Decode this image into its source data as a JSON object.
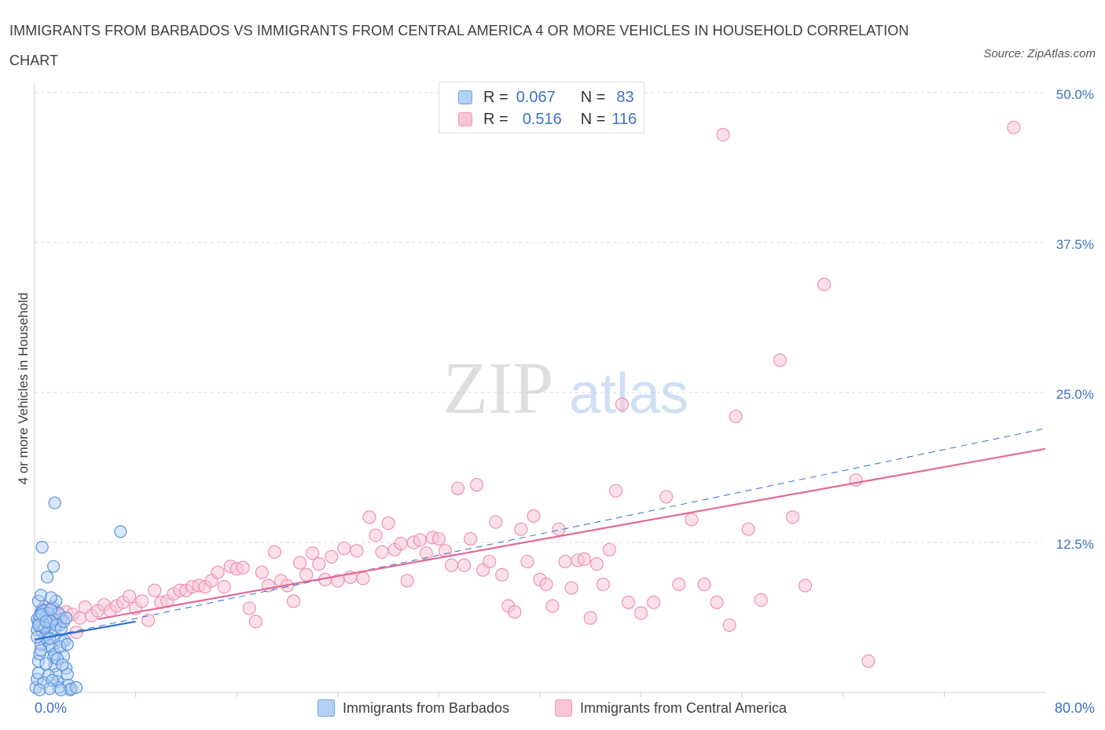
{
  "title": "IMMIGRANTS FROM BARBADOS VS IMMIGRANTS FROM CENTRAL AMERICA 4 OR MORE VEHICLES IN HOUSEHOLD CORRELATION CHART",
  "source": "Source: ZipAtlas.com",
  "watermark": {
    "zip": "ZIP",
    "atlas": "atlas"
  },
  "stats": {
    "barbados": {
      "r_label": "R =",
      "r_value": "0.067",
      "n_label": "N =",
      "n_value": "83"
    },
    "central_america": {
      "r_label": "R =",
      "r_value": "0.516",
      "n_label": "N =",
      "n_value": "116"
    }
  },
  "legend": {
    "barbados": "Immigrants from Barbados",
    "central_america": "Immigrants from Central America"
  },
  "colors": {
    "barbados": "#5b93dd",
    "central_america": "#ee93b1",
    "barbados_line": "#2f6fcc",
    "central_america_line": "#e2699a",
    "tick_label": "#3b73c4",
    "grid": "#d9d9d9"
  },
  "chart_data": {
    "type": "scatter",
    "title": "IMMIGRANTS FROM BARBADOS VS IMMIGRANTS FROM CENTRAL AMERICA 4 OR MORE VEHICLES IN HOUSEHOLD CORRELATION CHART",
    "xlabel": "",
    "ylabel": "4 or more Vehicles in Household",
    "xlim": [
      0,
      80
    ],
    "ylim": [
      0,
      50
    ],
    "x_tick_labels": [
      "0.0%",
      "80.0%"
    ],
    "y_ticks": [
      12.5,
      25.0,
      37.5,
      50.0
    ],
    "y_tick_labels": [
      "12.5%",
      "25.0%",
      "37.5%",
      "50.0%"
    ],
    "grid": true,
    "legend_position": "bottom",
    "series": [
      {
        "name": "Immigrants from Barbados",
        "points": [
          [
            0.1,
            0.4
          ],
          [
            0.2,
            1.1
          ],
          [
            0.3,
            1.6
          ],
          [
            0.3,
            2.6
          ],
          [
            0.4,
            3.2
          ],
          [
            0.5,
            4.0
          ],
          [
            0.2,
            5.2
          ],
          [
            0.3,
            5.9
          ],
          [
            0.4,
            6.3
          ],
          [
            0.5,
            6.6
          ],
          [
            0.6,
            6.9
          ],
          [
            0.7,
            6.0
          ],
          [
            0.8,
            5.4
          ],
          [
            0.9,
            4.8
          ],
          [
            1.0,
            4.4
          ],
          [
            1.1,
            5.8
          ],
          [
            1.2,
            6.2
          ],
          [
            1.3,
            5.0
          ],
          [
            1.4,
            3.6
          ],
          [
            1.5,
            2.9
          ],
          [
            1.6,
            2.2
          ],
          [
            1.7,
            1.5
          ],
          [
            1.8,
            0.9
          ],
          [
            1.9,
            0.4
          ],
          [
            2.0,
            5.6
          ],
          [
            2.1,
            6.1
          ],
          [
            2.2,
            4.2
          ],
          [
            2.3,
            3.0
          ],
          [
            2.5,
            2.0
          ],
          [
            2.6,
            1.5
          ],
          [
            2.7,
            0.6
          ],
          [
            2.8,
            0.2
          ],
          [
            0.2,
            6.1
          ],
          [
            0.4,
            5.6
          ],
          [
            0.6,
            5.1
          ],
          [
            0.8,
            4.6
          ],
          [
            1.0,
            6.6
          ],
          [
            1.2,
            3.9
          ],
          [
            1.4,
            7.1
          ],
          [
            1.6,
            5.3
          ],
          [
            0.3,
            7.6
          ],
          [
            0.5,
            8.1
          ],
          [
            0.7,
            6.8
          ],
          [
            0.9,
            6.3
          ],
          [
            1.1,
            6.6
          ],
          [
            1.3,
            5.9
          ],
          [
            1.5,
            6.1
          ],
          [
            1.7,
            5.6
          ],
          [
            1.9,
            6.6
          ],
          [
            2.1,
            5.3
          ],
          [
            2.3,
            5.9
          ],
          [
            1.0,
            9.6
          ],
          [
            1.5,
            10.5
          ],
          [
            0.6,
            12.1
          ],
          [
            1.6,
            15.8
          ],
          [
            6.8,
            13.4
          ],
          [
            1.7,
            7.6
          ],
          [
            1.3,
            7.9
          ],
          [
            0.4,
            6.4
          ],
          [
            0.8,
            5.4
          ],
          [
            1.2,
            4.5
          ],
          [
            0.5,
            3.5
          ],
          [
            0.9,
            2.4
          ],
          [
            1.1,
            1.4
          ],
          [
            0.7,
            0.8
          ],
          [
            1.6,
            3.2
          ],
          [
            2.4,
            4.3
          ],
          [
            2.0,
            3.8
          ],
          [
            1.8,
            2.8
          ],
          [
            2.2,
            2.3
          ],
          [
            0.3,
            5.6
          ],
          [
            0.6,
            6.5
          ],
          [
            0.9,
            5.9
          ],
          [
            1.3,
            6.9
          ],
          [
            2.5,
            6.2
          ],
          [
            2.6,
            4.0
          ],
          [
            1.4,
            1.0
          ],
          [
            0.4,
            0.2
          ],
          [
            1.2,
            0.3
          ],
          [
            2.1,
            0.2
          ],
          [
            2.9,
            0.3
          ],
          [
            3.3,
            0.4
          ],
          [
            0.2,
            4.6
          ]
        ]
      },
      {
        "name": "Immigrants from Central America",
        "points": [
          [
            0.5,
            6.6
          ],
          [
            0.8,
            7.1
          ],
          [
            1.0,
            6.0
          ],
          [
            1.2,
            6.8
          ],
          [
            1.5,
            7.0
          ],
          [
            1.8,
            6.5
          ],
          [
            2.0,
            6.4
          ],
          [
            2.5,
            6.7
          ],
          [
            3.0,
            6.5
          ],
          [
            3.3,
            5.0
          ],
          [
            3.6,
            6.2
          ],
          [
            4.0,
            7.1
          ],
          [
            4.5,
            6.4
          ],
          [
            5.0,
            6.8
          ],
          [
            5.5,
            7.3
          ],
          [
            6.0,
            6.8
          ],
          [
            6.5,
            7.2
          ],
          [
            7.0,
            7.5
          ],
          [
            7.5,
            8.0
          ],
          [
            8.0,
            7.0
          ],
          [
            8.5,
            7.6
          ],
          [
            9.0,
            6.0
          ],
          [
            9.5,
            8.5
          ],
          [
            10.0,
            7.5
          ],
          [
            10.5,
            7.6
          ],
          [
            11.0,
            8.2
          ],
          [
            11.5,
            8.5
          ],
          [
            12.0,
            8.5
          ],
          [
            12.5,
            8.8
          ],
          [
            13.0,
            8.9
          ],
          [
            13.5,
            8.8
          ],
          [
            14.0,
            9.3
          ],
          [
            14.5,
            10.0
          ],
          [
            15.0,
            8.8
          ],
          [
            15.5,
            10.5
          ],
          [
            16.0,
            10.3
          ],
          [
            16.5,
            10.4
          ],
          [
            17.0,
            7.0
          ],
          [
            17.5,
            5.9
          ],
          [
            18.0,
            10.0
          ],
          [
            18.5,
            8.9
          ],
          [
            19.0,
            11.7
          ],
          [
            19.5,
            9.3
          ],
          [
            20.0,
            8.9
          ],
          [
            20.5,
            7.6
          ],
          [
            21.0,
            10.8
          ],
          [
            21.5,
            9.8
          ],
          [
            22.0,
            11.6
          ],
          [
            22.5,
            10.7
          ],
          [
            23.0,
            9.4
          ],
          [
            23.5,
            11.3
          ],
          [
            24.0,
            9.3
          ],
          [
            24.5,
            12.0
          ],
          [
            25.0,
            9.6
          ],
          [
            25.5,
            11.8
          ],
          [
            26.0,
            9.5
          ],
          [
            26.5,
            14.6
          ],
          [
            27.0,
            13.1
          ],
          [
            27.5,
            11.7
          ],
          [
            28.0,
            14.1
          ],
          [
            28.5,
            11.9
          ],
          [
            29.0,
            12.4
          ],
          [
            29.5,
            9.3
          ],
          [
            30.0,
            12.5
          ],
          [
            30.5,
            12.7
          ],
          [
            31.0,
            11.6
          ],
          [
            31.5,
            12.9
          ],
          [
            32.0,
            12.8
          ],
          [
            32.5,
            11.8
          ],
          [
            33.0,
            10.6
          ],
          [
            33.5,
            17.0
          ],
          [
            34.0,
            10.6
          ],
          [
            34.5,
            12.8
          ],
          [
            35.0,
            17.3
          ],
          [
            35.5,
            10.2
          ],
          [
            36.0,
            10.9
          ],
          [
            36.5,
            14.2
          ],
          [
            37.0,
            9.8
          ],
          [
            37.5,
            7.2
          ],
          [
            38.0,
            6.7
          ],
          [
            38.5,
            13.6
          ],
          [
            39.0,
            10.9
          ],
          [
            39.5,
            14.7
          ],
          [
            40.0,
            9.4
          ],
          [
            40.5,
            9.0
          ],
          [
            41.0,
            7.2
          ],
          [
            41.5,
            13.6
          ],
          [
            42.0,
            10.9
          ],
          [
            42.5,
            8.7
          ],
          [
            43.0,
            11.0
          ],
          [
            43.5,
            11.1
          ],
          [
            44.0,
            6.2
          ],
          [
            44.5,
            10.7
          ],
          [
            45.0,
            9.0
          ],
          [
            45.5,
            11.9
          ],
          [
            46.0,
            16.8
          ],
          [
            46.5,
            24.0
          ],
          [
            47.0,
            7.5
          ],
          [
            48.0,
            6.6
          ],
          [
            49.0,
            7.5
          ],
          [
            50.0,
            16.3
          ],
          [
            51.0,
            9.0
          ],
          [
            52.0,
            14.4
          ],
          [
            53.0,
            9.0
          ],
          [
            54.0,
            7.5
          ],
          [
            54.5,
            46.5
          ],
          [
            55.0,
            5.6
          ],
          [
            55.5,
            23.0
          ],
          [
            56.5,
            13.6
          ],
          [
            57.5,
            7.7
          ],
          [
            59.0,
            27.7
          ],
          [
            60.0,
            14.6
          ],
          [
            61.0,
            8.9
          ],
          [
            62.5,
            34.0
          ],
          [
            65.0,
            17.7
          ],
          [
            66.0,
            2.6
          ],
          [
            77.5,
            47.1
          ]
        ]
      }
    ],
    "trend_lines": [
      {
        "series": "Immigrants from Barbados",
        "style": "solid",
        "x": [
          0,
          8
        ],
        "y": [
          4.4,
          5.9
        ]
      },
      {
        "series": "Immigrants from Barbados",
        "style": "dashed",
        "x": [
          0,
          80
        ],
        "y": [
          4.4,
          22.0
        ]
      },
      {
        "series": "Immigrants from Central America",
        "style": "solid",
        "x": [
          5,
          80
        ],
        "y": [
          6.1,
          20.3
        ]
      }
    ]
  }
}
